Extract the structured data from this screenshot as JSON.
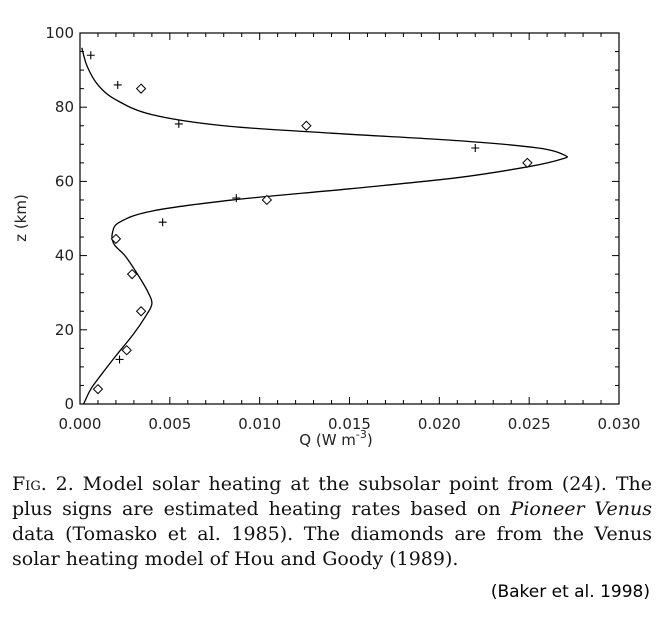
{
  "chart_data": {
    "type": "line",
    "xlabel": "Q (W m",
    "xlabel_sup": "-3",
    "xlabel_close": ")",
    "ylabel": "z (km)",
    "xlim": [
      0.0,
      0.03
    ],
    "ylim": [
      0,
      100
    ],
    "x_ticks": [
      0.0,
      0.005,
      0.01,
      0.015,
      0.02,
      0.025,
      0.03
    ],
    "x_tick_labels": [
      "0.000",
      "0.005",
      "0.010",
      "0.015",
      "0.020",
      "0.025",
      "0.030"
    ],
    "y_ticks": [
      0,
      20,
      40,
      60,
      80,
      100
    ],
    "y_tick_labels": [
      "0",
      "20",
      "40",
      "60",
      "80",
      "100"
    ],
    "grid": false,
    "model_curve": {
      "x": [
        0.0002,
        0.0006,
        0.0012,
        0.002,
        0.003,
        0.0037,
        0.004,
        0.0038,
        0.0032,
        0.0025,
        0.0019,
        0.0018,
        0.0022,
        0.004,
        0.0085,
        0.015,
        0.021,
        0.025,
        0.0268,
        0.027,
        0.0255,
        0.021,
        0.014,
        0.008,
        0.004,
        0.002,
        0.001,
        0.0004,
        0.0001
      ],
      "y": [
        0,
        4,
        8,
        13,
        19,
        24,
        27,
        30,
        35,
        40,
        43,
        46,
        49,
        52,
        55,
        58,
        61,
        64,
        66,
        67,
        69,
        71,
        73,
        75,
        78,
        82,
        86,
        91,
        96
      ]
    },
    "plus_points": {
      "x": [
        0.0006,
        0.0021,
        0.0022,
        0.0055,
        0.0046,
        0.0087,
        0.022
      ],
      "y": [
        94,
        86,
        12,
        75.5,
        49,
        55.5,
        69
      ]
    },
    "diamond_points": {
      "x": [
        0.0034,
        0.0126,
        0.0249,
        0.0104,
        0.002,
        0.0029,
        0.0034,
        0.0026,
        0.001
      ],
      "y": [
        85,
        75,
        65,
        55,
        44.5,
        35,
        25,
        14.5,
        4
      ]
    }
  },
  "caption": {
    "fig_label": "Fig.",
    "lead": " 2. Model solar heating at the subsolar point from (24). The plus signs are estimated heating rates based on ",
    "italic": "Pioneer Venus",
    "tail": " data (Tomasko et al. 1985). The diamonds are from the Venus solar heating model of Hou and Goody (1989)."
  },
  "citation": "(Baker et al. 1998)"
}
